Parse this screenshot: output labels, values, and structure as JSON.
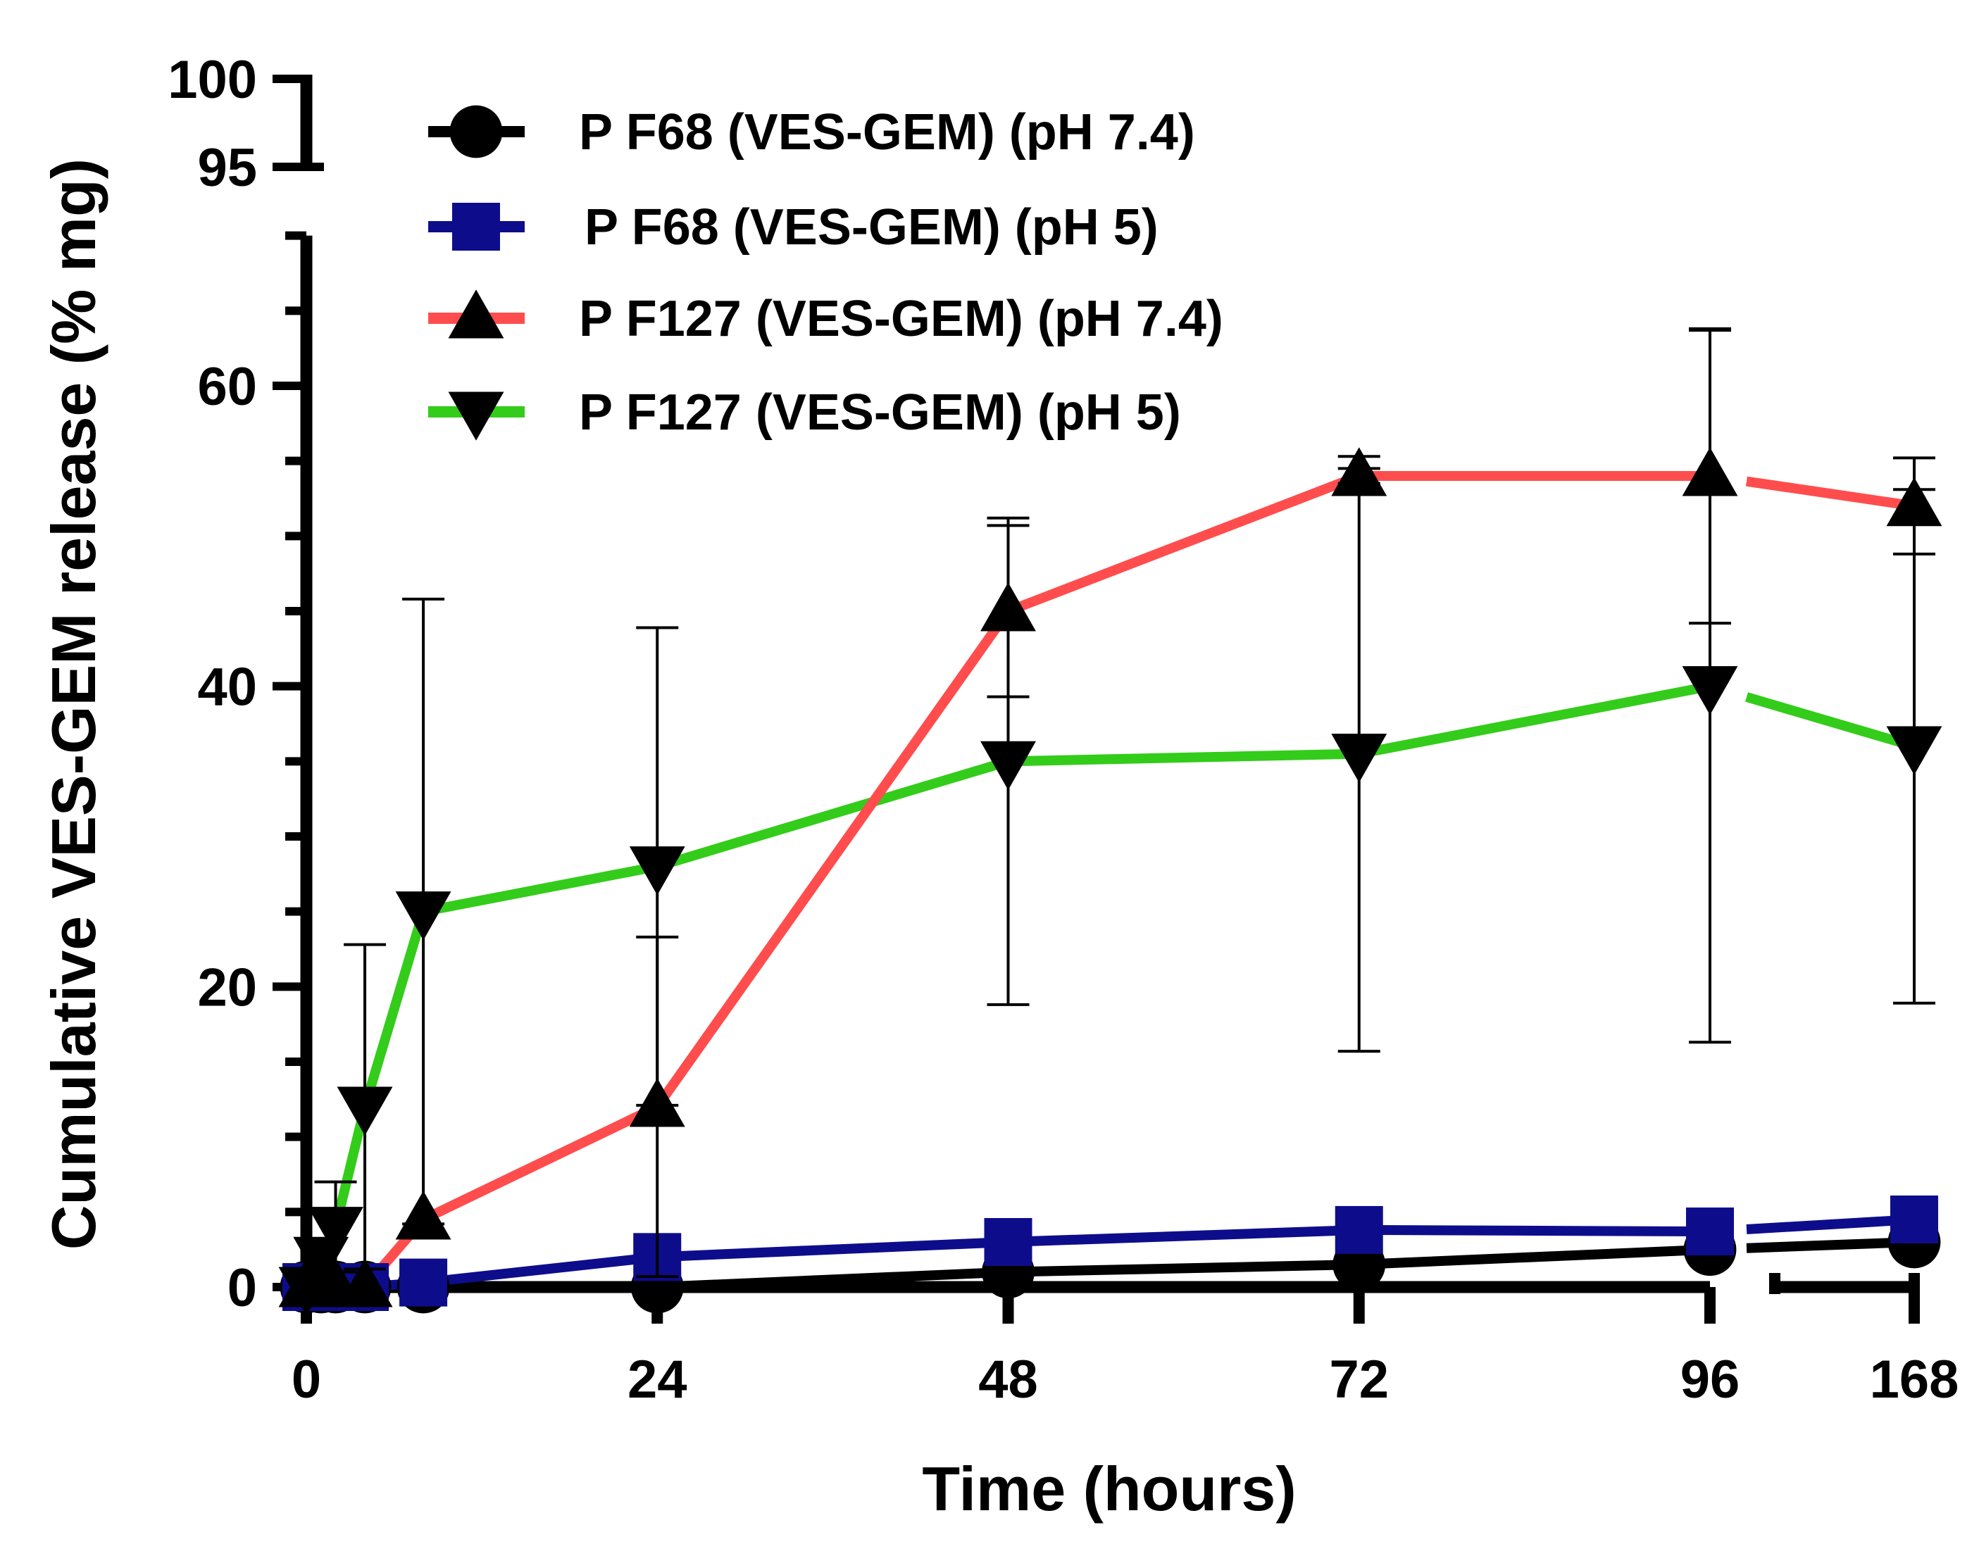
{
  "chart_data": {
    "type": "line",
    "title": "",
    "xlabel": "Time (hours)",
    "ylabel": "Cumulative VES-GEM release (% mg)",
    "x_tick_labels": [
      "0",
      "24",
      "48",
      "72",
      "96",
      "168"
    ],
    "y_tick_labels": [
      "0",
      "20",
      "40",
      "60",
      "95",
      "100"
    ],
    "x_axis_segments": [
      {
        "range": [
          0,
          96
        ],
        "ticks": [
          0,
          24,
          48,
          72,
          96
        ]
      },
      {
        "range": [
          168,
          168
        ],
        "ticks": [
          168
        ]
      }
    ],
    "y_axis_segments": [
      {
        "range": [
          0,
          70
        ],
        "ticks": [
          0,
          20,
          40,
          60
        ]
      },
      {
        "range": [
          95,
          100
        ],
        "ticks": [
          95,
          100
        ]
      }
    ],
    "legend_position": "top-center",
    "series": [
      {
        "name": "P F68 (VES-GEM) (pH 7.4)",
        "color": "#000000",
        "marker": "circle",
        "x": [
          0,
          1,
          2,
          4,
          8,
          24,
          48,
          72,
          96,
          168
        ],
        "y": [
          0,
          0,
          0,
          0,
          0,
          0,
          1,
          1.5,
          2.5,
          3
        ],
        "error": [
          0,
          0,
          0,
          0,
          0,
          0,
          0,
          0,
          0,
          0
        ]
      },
      {
        "name": "P F68 (VES-GEM) (pH 5)",
        "color": "#0d0d8c",
        "marker": "square",
        "x": [
          0,
          1,
          2,
          4,
          8,
          24,
          48,
          72,
          96,
          168
        ],
        "y": [
          0,
          0,
          0,
          0,
          0.3,
          2,
          3,
          3.8,
          3.7,
          4.5
        ],
        "error": [
          0,
          0,
          0,
          0,
          0,
          0,
          0,
          0,
          0,
          0
        ]
      },
      {
        "name": "P F127 (VES-GEM) (pH 7.4)",
        "color": "#ff4d4d",
        "marker": "triangle-up",
        "x": [
          0,
          1,
          2,
          4,
          8,
          24,
          48,
          72,
          96,
          168
        ],
        "y": [
          0,
          0,
          0,
          0,
          4.5,
          12,
          45,
          54,
          54,
          52
        ],
        "error": [
          0,
          0,
          0,
          0,
          0,
          11.3,
          5.7,
          0.5,
          9.8,
          3.2
        ]
      },
      {
        "name": "P F127 (VES-GEM) (pH 5)",
        "color": "#33cc1a",
        "marker": "triangle-down",
        "x": [
          0,
          1,
          2,
          4,
          8,
          24,
          48,
          72,
          96,
          168
        ],
        "y": [
          0,
          2,
          4,
          12,
          25,
          28,
          35,
          35.5,
          40,
          36
        ],
        "error": [
          0,
          0,
          3,
          10.8,
          20.8,
          15.9,
          16.2,
          19.8,
          23.7,
          17.1
        ]
      }
    ]
  }
}
